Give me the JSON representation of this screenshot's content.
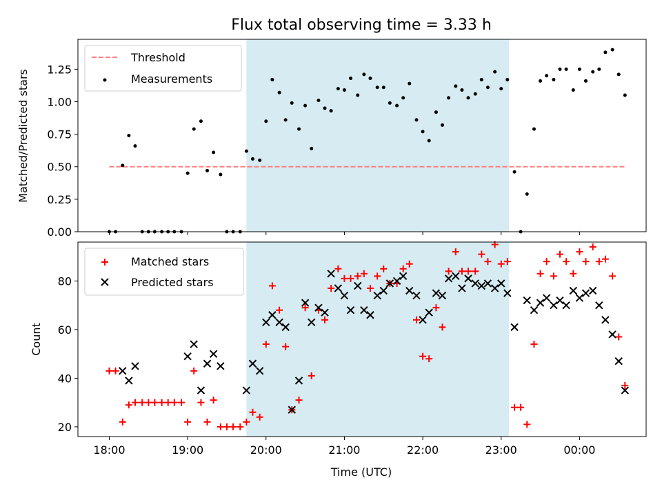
{
  "chart_data": [
    {
      "type": "scatter",
      "title": "Flux total observing time = 3.33 h",
      "xlabel": "",
      "ylabel": "Matched/Predicted stars",
      "ylim": [
        0.0,
        1.48
      ],
      "yticks": [
        0.0,
        0.25,
        0.5,
        0.75,
        1.0,
        1.25
      ],
      "ytick_labels": [
        "0.00",
        "0.25",
        "0.50",
        "0.75",
        "1.00",
        "1.25"
      ],
      "xlim": [
        -0.4,
        6.85
      ],
      "xticks": [
        0,
        1,
        2,
        3,
        4,
        5,
        6
      ],
      "x_unit": "hours after 18:00 UTC",
      "shaded_interval": [
        1.75,
        5.1
      ],
      "shade_color": "#add8e6",
      "legend": [
        {
          "label": "Threshold",
          "style": "dashed-line",
          "color": "#ff7f7f"
        },
        {
          "label": "Measurements",
          "style": "dot",
          "color": "#000000"
        }
      ],
      "legend_position": "upper left",
      "threshold": {
        "name": "Threshold",
        "y": 0.5,
        "x": [
          0,
          6.6
        ],
        "color": "#ff7f7f"
      },
      "series": [
        {
          "name": "Measurements",
          "color": "#000000",
          "marker": "dot",
          "x": [
            0.0,
            0.08,
            0.17,
            0.25,
            0.33,
            0.42,
            0.5,
            0.58,
            0.67,
            0.75,
            0.83,
            0.92,
            1.0,
            1.08,
            1.17,
            1.25,
            1.33,
            1.42,
            1.5,
            1.58,
            1.67,
            1.75,
            1.83,
            1.92,
            2.0,
            2.08,
            2.17,
            2.25,
            2.33,
            2.42,
            2.5,
            2.58,
            2.67,
            2.75,
            2.83,
            2.92,
            3.0,
            3.08,
            3.17,
            3.25,
            3.33,
            3.42,
            3.5,
            3.58,
            3.67,
            3.75,
            3.83,
            3.92,
            4.0,
            4.08,
            4.17,
            4.25,
            4.33,
            4.42,
            4.5,
            4.58,
            4.67,
            4.75,
            4.83,
            4.92,
            5.0,
            5.08,
            5.17,
            5.25,
            5.33,
            5.42,
            5.5,
            5.58,
            5.67,
            5.75,
            5.83,
            5.92,
            6.0,
            6.08,
            6.17,
            6.25,
            6.33,
            6.42,
            6.5,
            6.58
          ],
          "y": [
            0.0,
            0.0,
            0.51,
            0.74,
            0.66,
            0.0,
            0.0,
            0.0,
            0.0,
            0.0,
            0.0,
            0.0,
            0.45,
            0.79,
            0.85,
            0.47,
            0.61,
            0.44,
            0.0,
            0.0,
            0.0,
            0.62,
            0.56,
            0.55,
            0.85,
            1.17,
            1.07,
            0.86,
            0.99,
            0.79,
            0.97,
            0.64,
            1.01,
            0.95,
            0.93,
            1.1,
            1.09,
            1.18,
            1.05,
            1.21,
            1.18,
            1.11,
            1.11,
            0.99,
            0.97,
            1.03,
            1.14,
            0.86,
            0.77,
            0.7,
            0.92,
            0.82,
            1.03,
            1.12,
            1.09,
            1.03,
            1.06,
            1.17,
            1.11,
            1.23,
            1.1,
            1.17,
            0.46,
            0.0,
            0.29,
            0.79,
            1.16,
            1.2,
            1.17,
            1.25,
            1.25,
            1.09,
            1.25,
            1.16,
            1.23,
            1.25,
            1.38,
            1.4,
            1.21,
            1.05
          ]
        }
      ]
    },
    {
      "type": "scatter",
      "title": "",
      "xlabel": "Time (UTC)",
      "ylabel": "Count",
      "ylim": [
        16,
        96
      ],
      "yticks": [
        20,
        40,
        60,
        80
      ],
      "ytick_labels": [
        "20",
        "40",
        "60",
        "80"
      ],
      "xlim": [
        -0.4,
        6.85
      ],
      "xticks": [
        0,
        1,
        2,
        3,
        4,
        5,
        6
      ],
      "xtick_labels": [
        "18:00",
        "19:00",
        "20:00",
        "21:00",
        "22:00",
        "23:00",
        "00:00"
      ],
      "shaded_interval": [
        1.75,
        5.1
      ],
      "shade_color": "#add8e6",
      "legend": [
        {
          "label": "Matched stars",
          "style": "plus",
          "color": "#ff0000"
        },
        {
          "label": "Predicted stars",
          "style": "cross",
          "color": "#000000"
        }
      ],
      "legend_position": "upper left",
      "x": [
        0.0,
        0.08,
        0.17,
        0.25,
        0.33,
        0.42,
        0.5,
        0.58,
        0.67,
        0.75,
        0.83,
        0.92,
        1.0,
        1.08,
        1.17,
        1.25,
        1.33,
        1.42,
        1.5,
        1.58,
        1.67,
        1.75,
        1.83,
        1.92,
        2.0,
        2.08,
        2.17,
        2.25,
        2.33,
        2.42,
        2.5,
        2.58,
        2.67,
        2.75,
        2.83,
        2.92,
        3.0,
        3.08,
        3.17,
        3.25,
        3.33,
        3.42,
        3.5,
        3.58,
        3.67,
        3.75,
        3.83,
        3.92,
        4.0,
        4.08,
        4.17,
        4.25,
        4.33,
        4.42,
        4.5,
        4.58,
        4.67,
        4.75,
        4.83,
        4.92,
        5.0,
        5.08,
        5.17,
        5.25,
        5.33,
        5.42,
        5.5,
        5.58,
        5.67,
        5.75,
        5.83,
        5.92,
        6.0,
        6.08,
        6.17,
        6.25,
        6.33,
        6.42,
        6.5,
        6.58
      ],
      "series": [
        {
          "name": "Matched stars",
          "color": "#ff0000",
          "marker": "plus",
          "y": [
            43,
            43,
            22,
            29,
            30,
            30,
            30,
            30,
            30,
            30,
            30,
            30,
            22,
            43,
            30,
            22,
            31,
            20,
            20,
            20,
            20,
            22,
            26,
            24,
            54,
            78,
            68,
            53,
            27,
            31,
            69,
            41,
            68,
            64,
            77,
            85,
            81,
            81,
            82,
            83,
            77,
            82,
            85,
            79,
            79,
            85,
            87,
            64,
            49,
            48,
            69,
            61,
            84,
            92,
            84,
            84,
            84,
            91,
            88,
            95,
            87,
            88,
            28,
            28,
            21,
            54,
            83,
            88,
            82,
            91,
            88,
            83,
            92,
            88,
            94,
            88,
            89,
            82,
            57,
            37
          ]
        },
        {
          "name": "Predicted stars",
          "color": "#000000",
          "marker": "cross",
          "y": [
            null,
            null,
            43,
            39,
            45,
            null,
            null,
            null,
            null,
            null,
            null,
            null,
            49,
            54,
            35,
            46,
            50,
            45,
            null,
            null,
            null,
            35,
            46,
            43,
            63,
            66,
            63,
            61,
            27,
            39,
            71,
            63,
            69,
            67,
            83,
            77,
            74,
            68,
            78,
            68,
            66,
            74,
            76,
            79,
            80,
            82,
            76,
            74,
            64,
            67,
            75,
            74,
            81,
            82,
            77,
            81,
            79,
            78,
            79,
            77,
            79,
            75,
            61,
            null,
            72,
            68,
            71,
            73,
            70,
            72,
            70,
            76,
            73,
            75,
            76,
            70,
            64,
            58,
            47,
            35
          ]
        }
      ]
    }
  ]
}
